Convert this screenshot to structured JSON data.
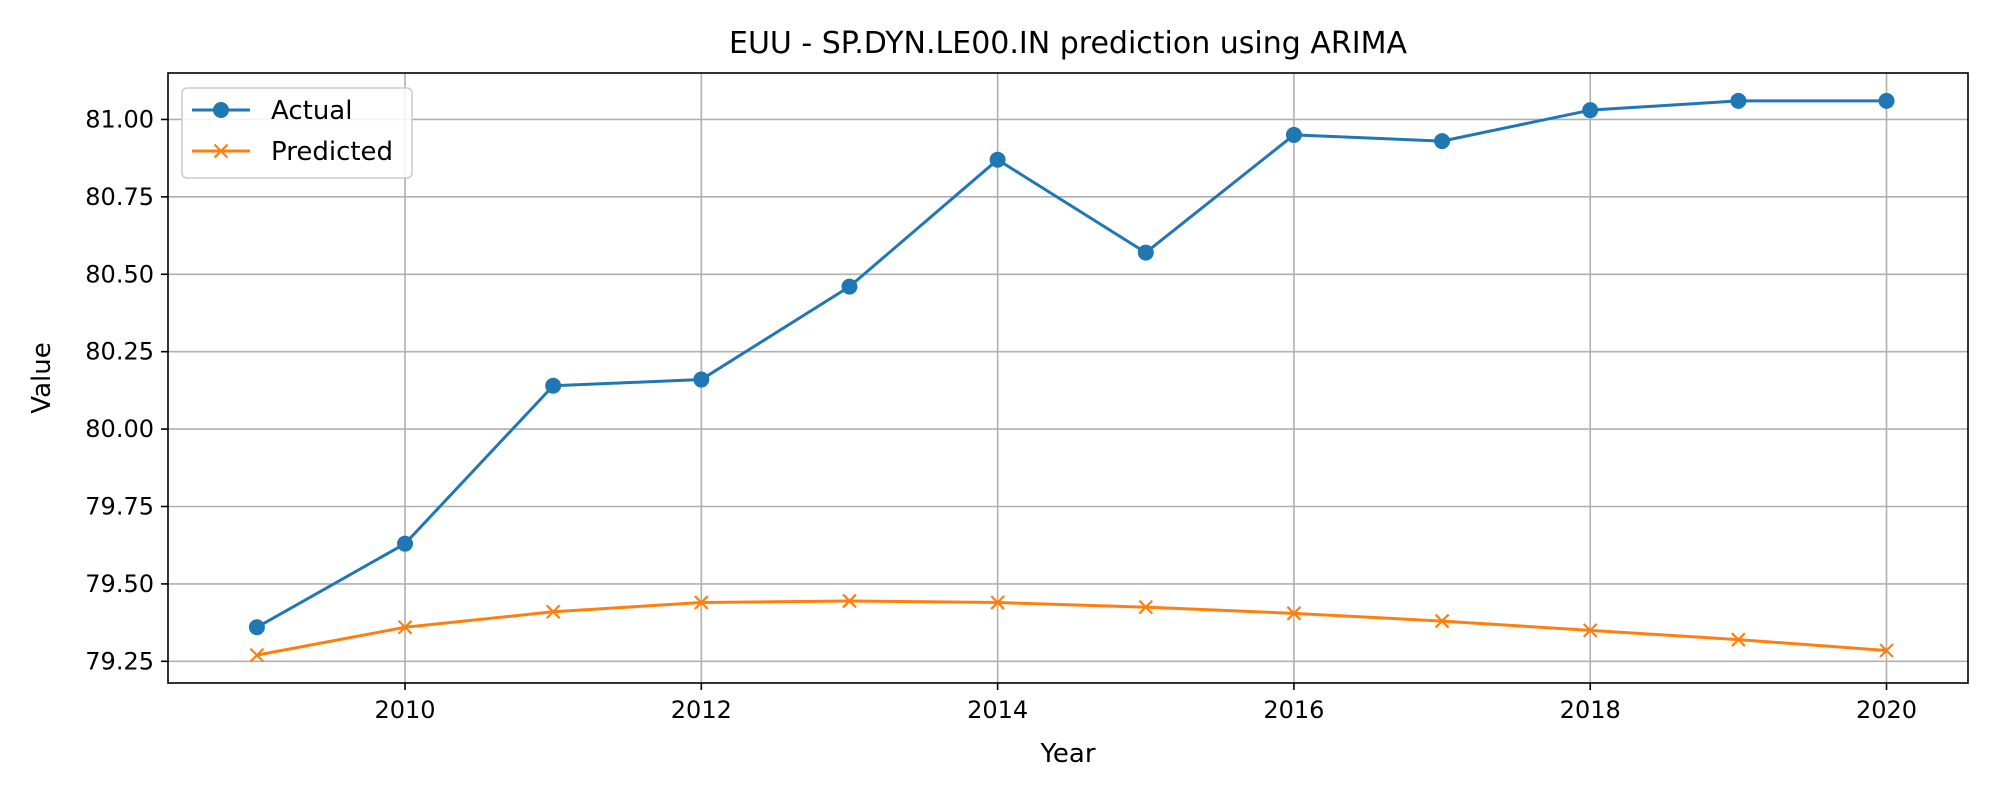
{
  "chart_data": {
    "type": "line",
    "title": "EUU - SP.DYN.LE00.IN prediction using ARIMA",
    "xlabel": "Year",
    "ylabel": "Value",
    "x": [
      2009,
      2010,
      2011,
      2012,
      2013,
      2014,
      2015,
      2016,
      2017,
      2018,
      2019,
      2020
    ],
    "xlim": [
      2008.4,
      2020.55
    ],
    "ylim": [
      79.18,
      81.15
    ],
    "xticks": [
      2010,
      2012,
      2014,
      2016,
      2018,
      2020
    ],
    "xtick_labels": [
      "2010",
      "2012",
      "2014",
      "2016",
      "2018",
      "2020"
    ],
    "yticks": [
      79.25,
      79.5,
      79.75,
      80.0,
      80.25,
      80.5,
      80.75,
      81.0
    ],
    "ytick_labels": [
      "79.25",
      "79.50",
      "79.75",
      "80.00",
      "80.25",
      "80.50",
      "80.75",
      "81.00"
    ],
    "grid": true,
    "legend_position": "top-left",
    "series": [
      {
        "name": "Actual",
        "color": "#1f77b4",
        "marker": "circle",
        "values": [
          79.36,
          79.63,
          80.14,
          80.16,
          80.46,
          80.87,
          80.57,
          80.95,
          80.93,
          81.03,
          81.06,
          81.06
        ]
      },
      {
        "name": "Predicted",
        "color": "#ff7f0e",
        "marker": "x",
        "values": [
          79.27,
          79.36,
          79.41,
          79.44,
          79.445,
          79.44,
          79.425,
          79.405,
          79.38,
          79.35,
          79.32,
          79.285
        ]
      }
    ]
  }
}
